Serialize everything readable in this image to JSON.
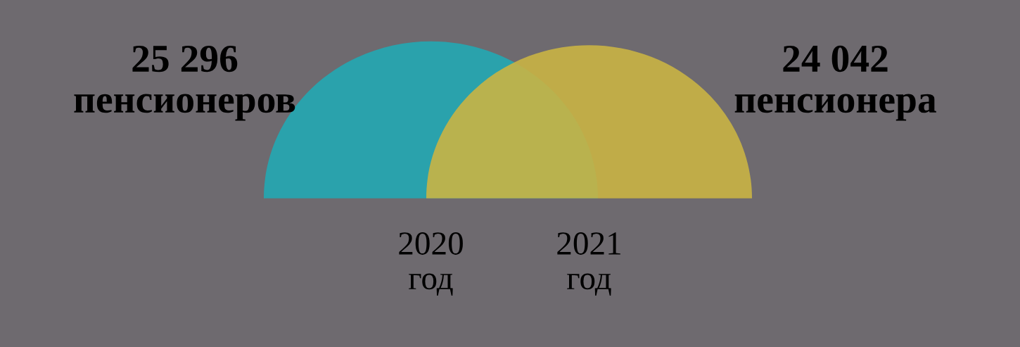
{
  "chart_data": {
    "type": "other",
    "categories": [
      "2020\nгод",
      "2021\nгод"
    ],
    "values": [
      25296,
      24042
    ],
    "value_labels": [
      "25 296\nпенсионеров",
      "24 042\nпенсионера"
    ],
    "colors": [
      "#22a9b3",
      "#c9b444"
    ]
  }
}
